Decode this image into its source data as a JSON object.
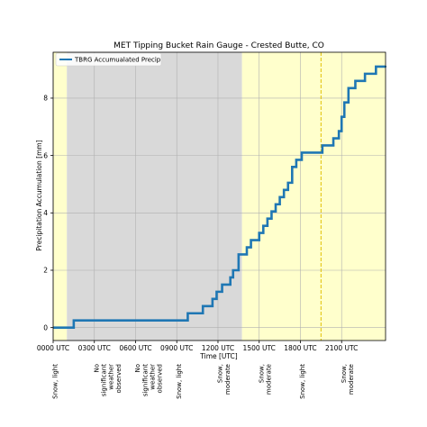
{
  "chart_data": {
    "type": "line",
    "title": "MET Tipping Bucket Rain Gauge - Crested Butte, CO",
    "xlabel": "Time [UTC]",
    "ylabel": "Precipitation Accumulation [mm]",
    "xlim": [
      0,
      24.2
    ],
    "ylim": [
      -0.45,
      9.6
    ],
    "x_ticks": [
      0,
      3,
      6,
      9,
      12,
      15,
      18,
      21
    ],
    "x_tick_labels": [
      "0000 UTC",
      "0300 UTC",
      "0600 UTC",
      "0900 UTC",
      "1200 UTC",
      "1500 UTC",
      "1800 UTC",
      "2100 UTC"
    ],
    "y_ticks": [
      0,
      2,
      4,
      6,
      8
    ],
    "y_tick_labels": [
      "0",
      "2",
      "4",
      "6",
      "8"
    ],
    "grid": true,
    "legend_placement": "top-left",
    "series": [
      {
        "name": "TBRG Accumualated Precip",
        "color": "#1f77b4",
        "x": [
          0,
          1.5,
          1.5,
          9.8,
          9.8,
          10.9,
          10.9,
          11.6,
          11.6,
          11.9,
          11.9,
          12.3,
          12.3,
          12.9,
          12.9,
          13.1,
          13.1,
          13.5,
          13.5,
          14.1,
          14.1,
          14.4,
          14.4,
          15.0,
          15.0,
          15.3,
          15.3,
          15.6,
          15.6,
          15.9,
          15.9,
          16.2,
          16.2,
          16.5,
          16.5,
          16.8,
          16.8,
          17.1,
          17.1,
          17.4,
          17.4,
          17.7,
          17.7,
          18.1,
          18.1,
          19.6,
          19.6,
          20.4,
          20.4,
          20.8,
          20.8,
          21.0,
          21.0,
          21.2,
          21.2,
          21.5,
          21.5,
          22.0,
          22.0,
          22.7,
          22.7,
          23.5,
          23.5,
          24.2
        ],
        "y": [
          0,
          0,
          0.25,
          0.25,
          0.5,
          0.5,
          0.75,
          0.75,
          1.0,
          1.0,
          1.25,
          1.25,
          1.5,
          1.5,
          1.75,
          1.75,
          2.0,
          2.0,
          2.55,
          2.55,
          2.8,
          2.8,
          3.05,
          3.05,
          3.3,
          3.3,
          3.55,
          3.55,
          3.8,
          3.8,
          4.05,
          4.05,
          4.3,
          4.3,
          4.55,
          4.55,
          4.8,
          4.8,
          5.05,
          5.05,
          5.6,
          5.6,
          5.85,
          5.85,
          6.1,
          6.1,
          6.35,
          6.35,
          6.6,
          6.6,
          6.85,
          6.85,
          7.35,
          7.35,
          7.85,
          7.85,
          8.35,
          8.35,
          8.6,
          8.6,
          8.85,
          8.85,
          9.1,
          9.1
        ]
      }
    ],
    "weather_periods": [
      {
        "start": 0,
        "end": 1.0,
        "color": "#ffffcc"
      },
      {
        "start": 1.0,
        "end": 13.75,
        "color": "#d9d9d9"
      },
      {
        "start": 13.75,
        "end": 24.2,
        "color": "#ffffcc"
      }
    ],
    "marker_line": {
      "x": 19.5,
      "color": "#e0c000",
      "style": "dashed"
    },
    "weather_labels": [
      {
        "x": 0.3,
        "text": "Snow, light"
      },
      {
        "x": 3.3,
        "text": "No significant weather observed"
      },
      {
        "x": 6.3,
        "text": "No significant weather observed"
      },
      {
        "x": 9.3,
        "text": "Snow, light"
      },
      {
        "x": 12.3,
        "text": "Snow, moderate"
      },
      {
        "x": 15.3,
        "text": "Snow, moderate"
      },
      {
        "x": 18.3,
        "text": "Snow, light"
      },
      {
        "x": 21.3,
        "text": "Snow, moderate"
      }
    ]
  }
}
